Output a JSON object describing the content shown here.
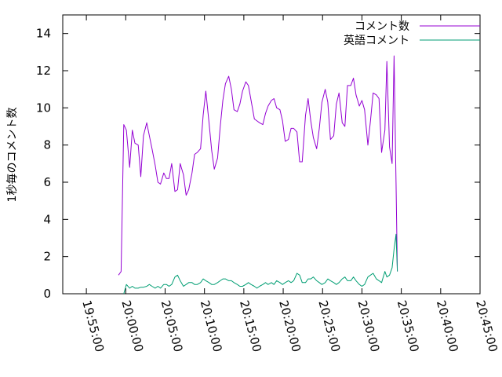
{
  "chart_data": {
    "type": "line",
    "ylabel": "1秒毎のコメント数",
    "xlabel": "",
    "title": "",
    "ylim": [
      0,
      15
    ],
    "yticks": [
      0,
      2,
      4,
      6,
      8,
      10,
      12,
      14
    ],
    "xlim": [
      "19:52:00",
      "20:45:00"
    ],
    "xtick_labels": [
      "19:55:00",
      "20:00:00",
      "20:05:00",
      "20:10:00",
      "20:15:00",
      "20:20:00",
      "20:25:00",
      "20:30:00",
      "20:35:00",
      "20:40:00",
      "20:45:00"
    ],
    "grid": false,
    "legend_position": "top-right",
    "series": [
      {
        "name": "コメント数",
        "color": "#9400d3",
        "points": [
          [
            "19:59:05",
            1.0
          ],
          [
            "19:59:25",
            1.2
          ],
          [
            "19:59:45",
            9.1
          ],
          [
            "20:00:05",
            8.8
          ],
          [
            "20:00:30",
            6.8
          ],
          [
            "20:00:50",
            8.8
          ],
          [
            "20:01:10",
            8.1
          ],
          [
            "20:01:35",
            8.0
          ],
          [
            "20:01:55",
            6.3
          ],
          [
            "20:02:15",
            8.5
          ],
          [
            "20:02:40",
            9.2
          ],
          [
            "20:03:00",
            8.5
          ],
          [
            "20:03:20",
            7.8
          ],
          [
            "20:03:45",
            6.9
          ],
          [
            "20:04:05",
            6.0
          ],
          [
            "20:04:25",
            5.9
          ],
          [
            "20:04:50",
            6.5
          ],
          [
            "20:05:10",
            6.2
          ],
          [
            "20:05:30",
            6.2
          ],
          [
            "20:05:50",
            7.0
          ],
          [
            "20:06:15",
            5.5
          ],
          [
            "20:06:35",
            5.6
          ],
          [
            "20:06:55",
            7.0
          ],
          [
            "20:07:20",
            6.4
          ],
          [
            "20:07:40",
            5.3
          ],
          [
            "20:08:00",
            5.6
          ],
          [
            "20:08:25",
            6.5
          ],
          [
            "20:08:45",
            7.5
          ],
          [
            "20:09:05",
            7.6
          ],
          [
            "20:09:30",
            7.8
          ],
          [
            "20:09:50",
            9.6
          ],
          [
            "20:10:10",
            10.9
          ],
          [
            "20:10:35",
            9.2
          ],
          [
            "20:10:55",
            7.7
          ],
          [
            "20:11:15",
            6.7
          ],
          [
            "20:11:40",
            7.3
          ],
          [
            "20:12:00",
            9.0
          ],
          [
            "20:12:20",
            10.4
          ],
          [
            "20:12:40",
            11.3
          ],
          [
            "20:13:05",
            11.7
          ],
          [
            "20:13:25",
            11.0
          ],
          [
            "20:13:45",
            9.9
          ],
          [
            "20:14:10",
            9.8
          ],
          [
            "20:14:30",
            10.2
          ],
          [
            "20:14:50",
            10.9
          ],
          [
            "20:15:15",
            11.4
          ],
          [
            "20:15:35",
            11.2
          ],
          [
            "20:15:55",
            10.4
          ],
          [
            "20:16:20",
            9.4
          ],
          [
            "20:16:40",
            9.3
          ],
          [
            "20:17:00",
            9.2
          ],
          [
            "20:17:25",
            9.1
          ],
          [
            "20:17:45",
            9.7
          ],
          [
            "20:18:05",
            10.1
          ],
          [
            "20:18:30",
            10.4
          ],
          [
            "20:18:50",
            10.5
          ],
          [
            "20:19:10",
            10.0
          ],
          [
            "20:19:35",
            9.9
          ],
          [
            "20:19:55",
            9.3
          ],
          [
            "20:20:15",
            8.2
          ],
          [
            "20:20:40",
            8.3
          ],
          [
            "20:21:00",
            8.9
          ],
          [
            "20:21:20",
            8.9
          ],
          [
            "20:21:45",
            8.7
          ],
          [
            "20:22:05",
            7.1
          ],
          [
            "20:22:25",
            7.1
          ],
          [
            "20:22:50",
            9.6
          ],
          [
            "20:23:10",
            10.5
          ],
          [
            "20:23:30",
            9.3
          ],
          [
            "20:23:50",
            8.4
          ],
          [
            "20:24:15",
            7.8
          ],
          [
            "20:24:35",
            8.9
          ],
          [
            "20:24:55",
            10.3
          ],
          [
            "20:25:20",
            11.0
          ],
          [
            "20:25:40",
            10.3
          ],
          [
            "20:26:00",
            8.3
          ],
          [
            "20:26:25",
            8.5
          ],
          [
            "20:26:45",
            10.2
          ],
          [
            "20:27:05",
            10.8
          ],
          [
            "20:27:30",
            9.2
          ],
          [
            "20:27:50",
            9.0
          ],
          [
            "20:28:10",
            11.2
          ],
          [
            "20:28:35",
            11.2
          ],
          [
            "20:28:55",
            11.6
          ],
          [
            "20:29:15",
            10.7
          ],
          [
            "20:29:40",
            10.1
          ],
          [
            "20:30:00",
            10.4
          ],
          [
            "20:30:20",
            9.9
          ],
          [
            "20:30:45",
            8.0
          ],
          [
            "20:31:05",
            9.3
          ],
          [
            "20:31:25",
            10.8
          ],
          [
            "20:31:50",
            10.7
          ],
          [
            "20:32:10",
            10.5
          ],
          [
            "20:32:30",
            7.6
          ],
          [
            "20:32:55",
            8.8
          ],
          [
            "20:33:10",
            12.5
          ],
          [
            "20:33:30",
            7.9
          ],
          [
            "20:33:50",
            7.0
          ],
          [
            "20:34:05",
            12.8
          ],
          [
            "20:34:20",
            6.0
          ],
          [
            "20:34:30",
            1.2
          ]
        ]
      },
      {
        "name": "英語コメント",
        "color": "#009e73",
        "points": [
          [
            "19:59:45",
            0.0
          ],
          [
            "20:00:05",
            0.5
          ],
          [
            "20:00:30",
            0.3
          ],
          [
            "20:00:50",
            0.4
          ],
          [
            "20:01:10",
            0.3
          ],
          [
            "20:01:35",
            0.3
          ],
          [
            "20:01:55",
            0.35
          ],
          [
            "20:02:15",
            0.35
          ],
          [
            "20:02:40",
            0.4
          ],
          [
            "20:03:00",
            0.5
          ],
          [
            "20:03:20",
            0.4
          ],
          [
            "20:03:45",
            0.3
          ],
          [
            "20:04:05",
            0.4
          ],
          [
            "20:04:25",
            0.3
          ],
          [
            "20:04:50",
            0.5
          ],
          [
            "20:05:10",
            0.5
          ],
          [
            "20:05:30",
            0.4
          ],
          [
            "20:05:50",
            0.5
          ],
          [
            "20:06:15",
            0.9
          ],
          [
            "20:06:35",
            1.0
          ],
          [
            "20:06:55",
            0.7
          ],
          [
            "20:07:20",
            0.4
          ],
          [
            "20:07:40",
            0.5
          ],
          [
            "20:08:00",
            0.6
          ],
          [
            "20:08:25",
            0.6
          ],
          [
            "20:08:45",
            0.5
          ],
          [
            "20:09:05",
            0.5
          ],
          [
            "20:09:30",
            0.6
          ],
          [
            "20:09:50",
            0.8
          ],
          [
            "20:10:10",
            0.7
          ],
          [
            "20:10:35",
            0.6
          ],
          [
            "20:10:55",
            0.5
          ],
          [
            "20:11:15",
            0.5
          ],
          [
            "20:11:40",
            0.6
          ],
          [
            "20:12:00",
            0.7
          ],
          [
            "20:12:20",
            0.8
          ],
          [
            "20:12:40",
            0.8
          ],
          [
            "20:13:05",
            0.7
          ],
          [
            "20:13:25",
            0.7
          ],
          [
            "20:13:45",
            0.6
          ],
          [
            "20:14:10",
            0.5
          ],
          [
            "20:14:30",
            0.4
          ],
          [
            "20:14:50",
            0.4
          ],
          [
            "20:15:15",
            0.5
          ],
          [
            "20:15:35",
            0.6
          ],
          [
            "20:15:55",
            0.5
          ],
          [
            "20:16:20",
            0.4
          ],
          [
            "20:16:40",
            0.3
          ],
          [
            "20:17:00",
            0.4
          ],
          [
            "20:17:25",
            0.5
          ],
          [
            "20:17:45",
            0.6
          ],
          [
            "20:18:05",
            0.5
          ],
          [
            "20:18:30",
            0.6
          ],
          [
            "20:18:50",
            0.5
          ],
          [
            "20:19:10",
            0.7
          ],
          [
            "20:19:35",
            0.6
          ],
          [
            "20:19:55",
            0.5
          ],
          [
            "20:20:15",
            0.6
          ],
          [
            "20:20:40",
            0.7
          ],
          [
            "20:21:00",
            0.6
          ],
          [
            "20:21:20",
            0.7
          ],
          [
            "20:21:45",
            1.1
          ],
          [
            "20:22:05",
            1.0
          ],
          [
            "20:22:25",
            0.6
          ],
          [
            "20:22:50",
            0.6
          ],
          [
            "20:23:10",
            0.8
          ],
          [
            "20:23:30",
            0.8
          ],
          [
            "20:23:50",
            0.9
          ],
          [
            "20:24:15",
            0.7
          ],
          [
            "20:24:35",
            0.6
          ],
          [
            "20:24:55",
            0.5
          ],
          [
            "20:25:20",
            0.6
          ],
          [
            "20:25:40",
            0.8
          ],
          [
            "20:26:00",
            0.7
          ],
          [
            "20:26:25",
            0.6
          ],
          [
            "20:26:45",
            0.5
          ],
          [
            "20:27:05",
            0.6
          ],
          [
            "20:27:30",
            0.8
          ],
          [
            "20:27:50",
            0.9
          ],
          [
            "20:28:10",
            0.7
          ],
          [
            "20:28:35",
            0.7
          ],
          [
            "20:28:55",
            0.9
          ],
          [
            "20:29:15",
            0.7
          ],
          [
            "20:29:40",
            0.5
          ],
          [
            "20:30:00",
            0.4
          ],
          [
            "20:30:20",
            0.5
          ],
          [
            "20:30:45",
            0.9
          ],
          [
            "20:31:05",
            1.0
          ],
          [
            "20:31:25",
            1.1
          ],
          [
            "20:31:50",
            0.8
          ],
          [
            "20:32:10",
            0.7
          ],
          [
            "20:32:30",
            0.6
          ],
          [
            "20:32:55",
            1.2
          ],
          [
            "20:33:10",
            0.9
          ],
          [
            "20:33:30",
            1.0
          ],
          [
            "20:33:50",
            1.4
          ],
          [
            "20:34:05",
            2.4
          ],
          [
            "20:34:20",
            3.2
          ],
          [
            "20:34:30",
            1.2
          ]
        ]
      }
    ]
  }
}
